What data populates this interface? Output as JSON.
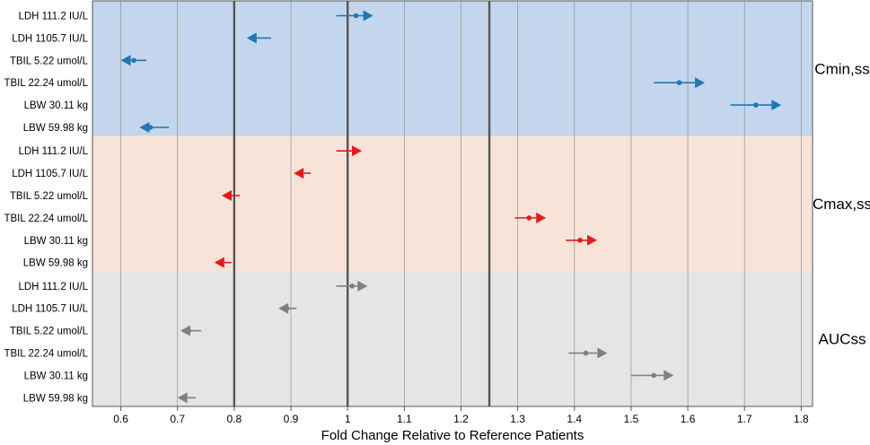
{
  "chart_data": {
    "type": "forest",
    "title": "",
    "xlabel": "Fold Change Relative to Reference Patients",
    "ylabel": "",
    "xlim": [
      0.55,
      1.82
    ],
    "x_ticks": [
      "0.6",
      "0.7",
      "0.8",
      "0.9",
      "1",
      "1.1",
      "1.2",
      "1.3",
      "1.4",
      "1.5",
      "1.6",
      "1.7",
      "1.8"
    ],
    "x_tick_values": [
      0.6,
      0.7,
      0.8,
      0.9,
      1.0,
      1.1,
      1.2,
      1.3,
      1.4,
      1.5,
      1.6,
      1.7,
      1.8
    ],
    "reference_lines": [
      0.8,
      1.0,
      1.25
    ],
    "grid": true,
    "panels": [
      {
        "name": "Cmin,ss",
        "background": "#c3d6ed",
        "color": "#1f77b4",
        "rows": [
          {
            "label": "LDH  111.2 IU/L",
            "start": 0.98,
            "end": 1.045,
            "point": 1.015,
            "direction": "right"
          },
          {
            "label": "LDH  1105.7 IU/L",
            "start": 0.865,
            "end": 0.822,
            "point": null,
            "direction": "left"
          },
          {
            "label": "TBIL  5.22 umol/L",
            "start": 0.645,
            "end": 0.6,
            "point": 0.623,
            "direction": "left"
          },
          {
            "label": "TBIL  22.24 umol/L",
            "start": 1.54,
            "end": 1.63,
            "point": 1.585,
            "direction": "right"
          },
          {
            "label": "LBW  30.11 kg",
            "start": 1.675,
            "end": 1.765,
            "point": 1.72,
            "direction": "right"
          },
          {
            "label": "LBW  59.98 kg",
            "start": 0.685,
            "end": 0.633,
            "point": 0.652,
            "direction": "left"
          }
        ]
      },
      {
        "name": "Cmax,ss",
        "background": "#f8e3d9",
        "color": "#e31a1c",
        "rows": [
          {
            "label": "LDH  111.2 IU/L",
            "start": 0.98,
            "end": 1.025,
            "point": null,
            "direction": "right"
          },
          {
            "label": "LDH  1105.7 IU/L",
            "start": 0.935,
            "end": 0.905,
            "point": 0.918,
            "direction": "left"
          },
          {
            "label": "TBIL  5.22 umol/L",
            "start": 0.81,
            "end": 0.778,
            "point": null,
            "direction": "left"
          },
          {
            "label": "TBIL  22.24 umol/L",
            "start": 1.295,
            "end": 1.35,
            "point": 1.32,
            "direction": "right"
          },
          {
            "label": "LBW  30.11 kg",
            "start": 1.385,
            "end": 1.44,
            "point": 1.41,
            "direction": "right"
          },
          {
            "label": "LBW  59.98 kg",
            "start": 0.795,
            "end": 0.765,
            "point": null,
            "direction": "left"
          }
        ]
      },
      {
        "name": "AUCss",
        "background": "#e5e5e5",
        "color": "#808080",
        "rows": [
          {
            "label": "LDH  111.2 IU/L",
            "start": 0.98,
            "end": 1.035,
            "point": 1.008,
            "direction": "right"
          },
          {
            "label": "LDH  1105.7 IU/L",
            "start": 0.91,
            "end": 0.878,
            "point": 0.893,
            "direction": "left"
          },
          {
            "label": "TBIL  5.22 umol/L",
            "start": 0.742,
            "end": 0.705,
            "point": 0.72,
            "direction": "left"
          },
          {
            "label": "TBIL  22.24 umol/L",
            "start": 1.39,
            "end": 1.458,
            "point": 1.42,
            "direction": "right"
          },
          {
            "label": "LBW  30.11 kg",
            "start": 1.5,
            "end": 1.575,
            "point": 1.54,
            "direction": "right"
          },
          {
            "label": "LBW  59.98 kg",
            "start": 0.732,
            "end": 0.7,
            "point": 0.713,
            "direction": "left"
          }
        ]
      }
    ]
  }
}
